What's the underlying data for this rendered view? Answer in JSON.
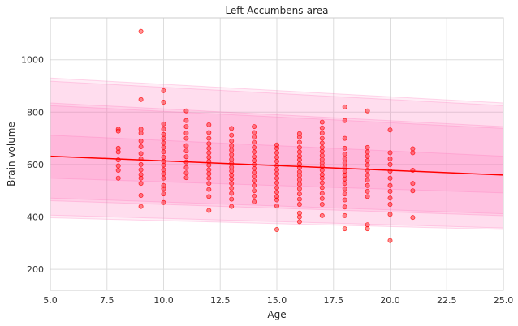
{
  "chart_data": {
    "type": "scatter",
    "title": "Left-Accumbens-area",
    "xlabel": "Age",
    "ylabel": "Brain volume",
    "xlim": [
      5.0,
      25.0
    ],
    "ylim": [
      120,
      1160
    ],
    "xticks": [
      5.0,
      7.5,
      10.0,
      12.5,
      15.0,
      17.5,
      20.0,
      22.5,
      25.0
    ],
    "xtick_labels": [
      "5.0",
      "7.5",
      "10.0",
      "12.5",
      "15.0",
      "17.5",
      "20.0",
      "22.5",
      "25.0"
    ],
    "yticks": [
      200,
      400,
      600,
      800,
      1000
    ],
    "ytick_labels": [
      "200",
      "400",
      "600",
      "800",
      "1000"
    ],
    "grid": true,
    "fit_line": {
      "x": [
        5.0,
        25.0
      ],
      "y": [
        632,
        560
      ],
      "color": "#ff0000"
    },
    "percentile_bands": [
      {
        "x": [
          5.0,
          25.0
        ],
        "lower": [
          397,
          352
        ],
        "upper": [
          930,
          835
        ]
      },
      {
        "x": [
          5.0,
          25.0
        ],
        "lower": [
          407,
          358
        ],
        "upper": [
          918,
          825
        ]
      },
      {
        "x": [
          5.0,
          25.0
        ],
        "lower": [
          462,
          405
        ],
        "upper": [
          835,
          745
        ]
      },
      {
        "x": [
          5.0,
          25.0
        ],
        "lower": [
          472,
          412
        ],
        "upper": [
          825,
          738
        ]
      },
      {
        "x": [
          5.0,
          25.0
        ],
        "lower": [
          548,
          492
        ],
        "upper": [
          712,
          632
        ]
      }
    ],
    "band_color": "#ff69b4",
    "point_color": "#ff0000",
    "points": [
      [
        8,
        548
      ],
      [
        8,
        578
      ],
      [
        8,
        595
      ],
      [
        8,
        618
      ],
      [
        8,
        648
      ],
      [
        8,
        662
      ],
      [
        8,
        728
      ],
      [
        8,
        735
      ],
      [
        9,
        1108
      ],
      [
        9,
        848
      ],
      [
        9,
        440
      ],
      [
        9,
        482
      ],
      [
        9,
        528
      ],
      [
        9,
        548
      ],
      [
        9,
        562
      ],
      [
        9,
        580
      ],
      [
        9,
        600
      ],
      [
        9,
        622
      ],
      [
        9,
        642
      ],
      [
        9,
        668
      ],
      [
        9,
        690
      ],
      [
        9,
        720
      ],
      [
        9,
        735
      ],
      [
        10,
        882
      ],
      [
        10,
        838
      ],
      [
        10,
        455
      ],
      [
        10,
        488
      ],
      [
        10,
        508
      ],
      [
        10,
        520
      ],
      [
        10,
        548
      ],
      [
        10,
        565
      ],
      [
        10,
        580
      ],
      [
        10,
        598
      ],
      [
        10,
        612
      ],
      [
        10,
        628
      ],
      [
        10,
        648
      ],
      [
        10,
        665
      ],
      [
        10,
        682
      ],
      [
        10,
        700
      ],
      [
        10,
        715
      ],
      [
        10,
        735
      ],
      [
        10,
        755
      ],
      [
        11,
        805
      ],
      [
        11,
        550
      ],
      [
        11,
        568
      ],
      [
        11,
        588
      ],
      [
        11,
        610
      ],
      [
        11,
        630
      ],
      [
        11,
        652
      ],
      [
        11,
        672
      ],
      [
        11,
        700
      ],
      [
        11,
        720
      ],
      [
        11,
        745
      ],
      [
        11,
        768
      ],
      [
        12,
        425
      ],
      [
        12,
        478
      ],
      [
        12,
        505
      ],
      [
        12,
        528
      ],
      [
        12,
        548
      ],
      [
        12,
        565
      ],
      [
        12,
        580
      ],
      [
        12,
        598
      ],
      [
        12,
        612
      ],
      [
        12,
        628
      ],
      [
        12,
        645
      ],
      [
        12,
        662
      ],
      [
        12,
        680
      ],
      [
        12,
        700
      ],
      [
        12,
        722
      ],
      [
        12,
        752
      ],
      [
        13,
        440
      ],
      [
        13,
        468
      ],
      [
        13,
        490
      ],
      [
        13,
        510
      ],
      [
        13,
        528
      ],
      [
        13,
        545
      ],
      [
        13,
        560
      ],
      [
        13,
        575
      ],
      [
        13,
        590
      ],
      [
        13,
        605
      ],
      [
        13,
        620
      ],
      [
        13,
        638
      ],
      [
        13,
        655
      ],
      [
        13,
        672
      ],
      [
        13,
        690
      ],
      [
        13,
        712
      ],
      [
        13,
        738
      ],
      [
        14,
        458
      ],
      [
        14,
        480
      ],
      [
        14,
        500
      ],
      [
        14,
        520
      ],
      [
        14,
        538
      ],
      [
        14,
        555
      ],
      [
        14,
        570
      ],
      [
        14,
        585
      ],
      [
        14,
        600
      ],
      [
        14,
        615
      ],
      [
        14,
        630
      ],
      [
        14,
        648
      ],
      [
        14,
        665
      ],
      [
        14,
        685
      ],
      [
        14,
        705
      ],
      [
        14,
        722
      ],
      [
        14,
        745
      ],
      [
        15,
        352
      ],
      [
        15,
        442
      ],
      [
        15,
        465
      ],
      [
        15,
        478
      ],
      [
        15,
        495
      ],
      [
        15,
        512
      ],
      [
        15,
        530
      ],
      [
        15,
        548
      ],
      [
        15,
        565
      ],
      [
        15,
        580
      ],
      [
        15,
        596
      ],
      [
        15,
        612
      ],
      [
        15,
        628
      ],
      [
        15,
        645
      ],
      [
        15,
        662
      ],
      [
        15,
        675
      ],
      [
        16,
        382
      ],
      [
        16,
        400
      ],
      [
        16,
        415
      ],
      [
        16,
        448
      ],
      [
        16,
        468
      ],
      [
        16,
        488
      ],
      [
        16,
        508
      ],
      [
        16,
        525
      ],
      [
        16,
        542
      ],
      [
        16,
        558
      ],
      [
        16,
        572
      ],
      [
        16,
        588
      ],
      [
        16,
        602
      ],
      [
        16,
        618
      ],
      [
        16,
        632
      ],
      [
        16,
        648
      ],
      [
        16,
        665
      ],
      [
        16,
        685
      ],
      [
        16,
        705
      ],
      [
        16,
        718
      ],
      [
        17,
        405
      ],
      [
        17,
        448
      ],
      [
        17,
        470
      ],
      [
        17,
        490
      ],
      [
        17,
        512
      ],
      [
        17,
        530
      ],
      [
        17,
        548
      ],
      [
        17,
        562
      ],
      [
        17,
        578
      ],
      [
        17,
        592
      ],
      [
        17,
        606
      ],
      [
        17,
        620
      ],
      [
        17,
        635
      ],
      [
        17,
        650
      ],
      [
        17,
        665
      ],
      [
        17,
        682
      ],
      [
        17,
        700
      ],
      [
        17,
        720
      ],
      [
        17,
        740
      ],
      [
        17,
        762
      ],
      [
        18,
        355
      ],
      [
        18,
        405
      ],
      [
        18,
        438
      ],
      [
        18,
        465
      ],
      [
        18,
        488
      ],
      [
        18,
        508
      ],
      [
        18,
        528
      ],
      [
        18,
        545
      ],
      [
        18,
        560
      ],
      [
        18,
        575
      ],
      [
        18,
        590
      ],
      [
        18,
        606
      ],
      [
        18,
        622
      ],
      [
        18,
        640
      ],
      [
        18,
        662
      ],
      [
        18,
        700
      ],
      [
        18,
        768
      ],
      [
        18,
        820
      ],
      [
        19,
        355
      ],
      [
        19,
        370
      ],
      [
        19,
        478
      ],
      [
        19,
        498
      ],
      [
        19,
        520
      ],
      [
        19,
        540
      ],
      [
        19,
        560
      ],
      [
        19,
        578
      ],
      [
        19,
        598
      ],
      [
        19,
        615
      ],
      [
        19,
        632
      ],
      [
        19,
        648
      ],
      [
        19,
        665
      ],
      [
        19,
        805
      ],
      [
        20,
        310
      ],
      [
        20,
        410
      ],
      [
        20,
        448
      ],
      [
        20,
        472
      ],
      [
        20,
        498
      ],
      [
        20,
        520
      ],
      [
        20,
        548
      ],
      [
        20,
        575
      ],
      [
        20,
        600
      ],
      [
        20,
        622
      ],
      [
        20,
        645
      ],
      [
        20,
        732
      ],
      [
        21,
        398
      ],
      [
        21,
        500
      ],
      [
        21,
        528
      ],
      [
        21,
        578
      ],
      [
        21,
        645
      ],
      [
        21,
        660
      ]
    ]
  }
}
